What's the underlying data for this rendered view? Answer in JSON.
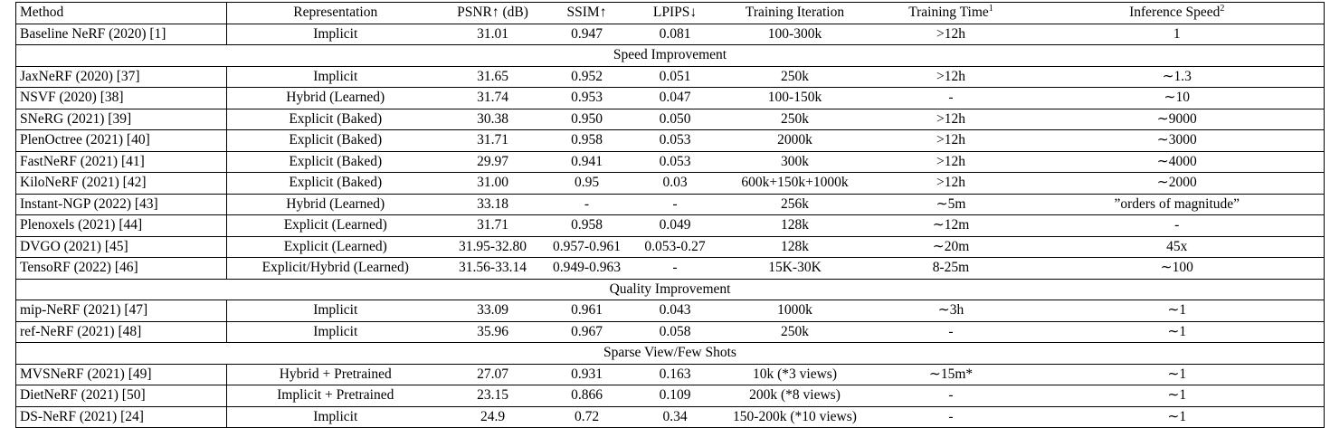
{
  "table": {
    "header": [
      {
        "text": "Method"
      },
      {
        "text": "Representation"
      },
      {
        "text": "PSNR↑ (dB)"
      },
      {
        "text": "SSIM↑"
      },
      {
        "text": "LPIPS↓"
      },
      {
        "text": "Training Iteration"
      },
      {
        "text": "Training Time",
        "sup": "1"
      },
      {
        "text": "Inference Speed",
        "sup": "2"
      }
    ],
    "rows": [
      [
        "Baseline NeRF (2020) [1]",
        "Implicit",
        "31.01",
        "0.947",
        "0.081",
        "100-300k",
        ">12h",
        "1"
      ]
    ],
    "sections": [
      {
        "title": "Speed Improvement",
        "rows": [
          [
            "JaxNeRF (2020) [37]",
            "Implicit",
            "31.65",
            "0.952",
            "0.051",
            "250k",
            ">12h",
            "∼1.3"
          ],
          [
            "NSVF (2020) [38]",
            "Hybrid (Learned)",
            "31.74",
            "0.953",
            "0.047",
            "100-150k",
            "-",
            "∼10"
          ],
          [
            "SNeRG (2021) [39]",
            "Explicit (Baked)",
            "30.38",
            "0.950",
            "0.050",
            "250k",
            ">12h",
            "∼9000"
          ],
          [
            "PlenOctree (2021) [40]",
            "Explicit (Baked)",
            "31.71",
            "0.958",
            "0.053",
            "2000k",
            ">12h",
            "∼3000"
          ],
          [
            "FastNeRF (2021) [41]",
            "Explicit (Baked)",
            "29.97",
            "0.941",
            "0.053",
            "300k",
            ">12h",
            "∼4000"
          ],
          [
            "KiloNeRF (2021) [42]",
            "Explicit (Baked)",
            "31.00",
            "0.95",
            "0.03",
            "600k+150k+1000k",
            ">12h",
            "∼2000"
          ],
          [
            "Instant-NGP (2022) [43]",
            "Hybrid (Learned)",
            "33.18",
            "-",
            "-",
            "256k",
            "∼5m",
            "”orders of magnitude”"
          ],
          [
            "Plenoxels (2021) [44]",
            "Explicit (Learned)",
            "31.71",
            "0.958",
            "0.049",
            "128k",
            "∼12m",
            "-"
          ],
          [
            "DVGO (2021) [45]",
            "Explicit (Learned)",
            "31.95-32.80",
            "0.957-0.961",
            "0.053-0.27",
            "128k",
            "∼20m",
            "45x"
          ],
          [
            "TensoRF (2022) [46]",
            "Explicit/Hybrid (Learned)",
            "31.56-33.14",
            "0.949-0.963",
            "-",
            "15K-30K",
            "8-25m",
            "∼100"
          ]
        ]
      },
      {
        "title": "Quality Improvement",
        "rows": [
          [
            "mip-NeRF (2021) [47]",
            "Implicit",
            "33.09",
            "0.961",
            "0.043",
            "1000k",
            "∼3h",
            "∼1"
          ],
          [
            "ref-NeRF (2021) [48]",
            "Implicit",
            "35.96",
            "0.967",
            "0.058",
            "250k",
            "-",
            "∼1"
          ]
        ]
      },
      {
        "title": "Sparse View/Few Shots",
        "rows": [
          [
            "MVSNeRF (2021) [49]",
            "Hybrid + Pretrained",
            "27.07",
            "0.931",
            "0.163",
            "10k (*3 views)",
            "∼15m*",
            "∼1"
          ],
          [
            "DietNeRF (2021) [50]",
            "Implicit + Pretrained",
            "23.15",
            "0.866",
            "0.109",
            "200k (*8 views)",
            "-",
            "∼1"
          ],
          [
            "DS-NeRF (2021) [24]",
            "Implicit",
            "24.9",
            "0.72",
            "0.34",
            "150-200k (*10 views)",
            "-",
            "∼1"
          ]
        ]
      }
    ]
  }
}
